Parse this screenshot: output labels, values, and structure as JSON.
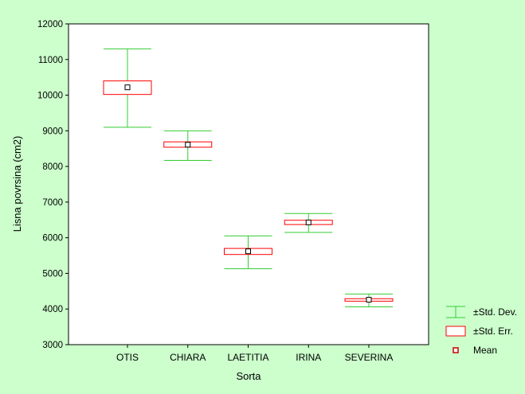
{
  "chart_data": {
    "type": "box",
    "xlabel": "Sorta",
    "ylabel": "Lisna povrsina (cm2)",
    "ylim": [
      3000,
      12000
    ],
    "yticks": [
      3000,
      4000,
      5000,
      6000,
      7000,
      8000,
      9000,
      10000,
      11000,
      12000
    ],
    "grid": false,
    "categories": [
      "OTIS",
      "CHIARA",
      "LAETITIA",
      "IRINA",
      "SEVERINA"
    ],
    "mean": [
      10220,
      8610,
      5620,
      6430,
      4260
    ],
    "std_err_low": [
      10020,
      8540,
      5530,
      6370,
      4220
    ],
    "std_err_high": [
      10400,
      8690,
      5700,
      6490,
      4290
    ],
    "std_dev_low": [
      9100,
      8170,
      5130,
      6150,
      4060
    ],
    "std_dev_high": [
      11300,
      9000,
      6050,
      6680,
      4420
    ],
    "legend": {
      "position": "right-bottom",
      "items": [
        {
          "label": "±Std. Dev.",
          "kind": "std-dev",
          "color": "#33cc33"
        },
        {
          "label": "±Std. Err.",
          "kind": "std-err",
          "color": "#ff0000"
        },
        {
          "label": "Mean",
          "kind": "mean",
          "color": "#cc0000"
        }
      ]
    },
    "colors": {
      "background": "#ccffcc",
      "plot_area": "#ffffff",
      "std_dev": "#33cc33",
      "std_err": "#ff0000",
      "std_err_center": "#cc0044",
      "mean": "#cc0000"
    }
  }
}
